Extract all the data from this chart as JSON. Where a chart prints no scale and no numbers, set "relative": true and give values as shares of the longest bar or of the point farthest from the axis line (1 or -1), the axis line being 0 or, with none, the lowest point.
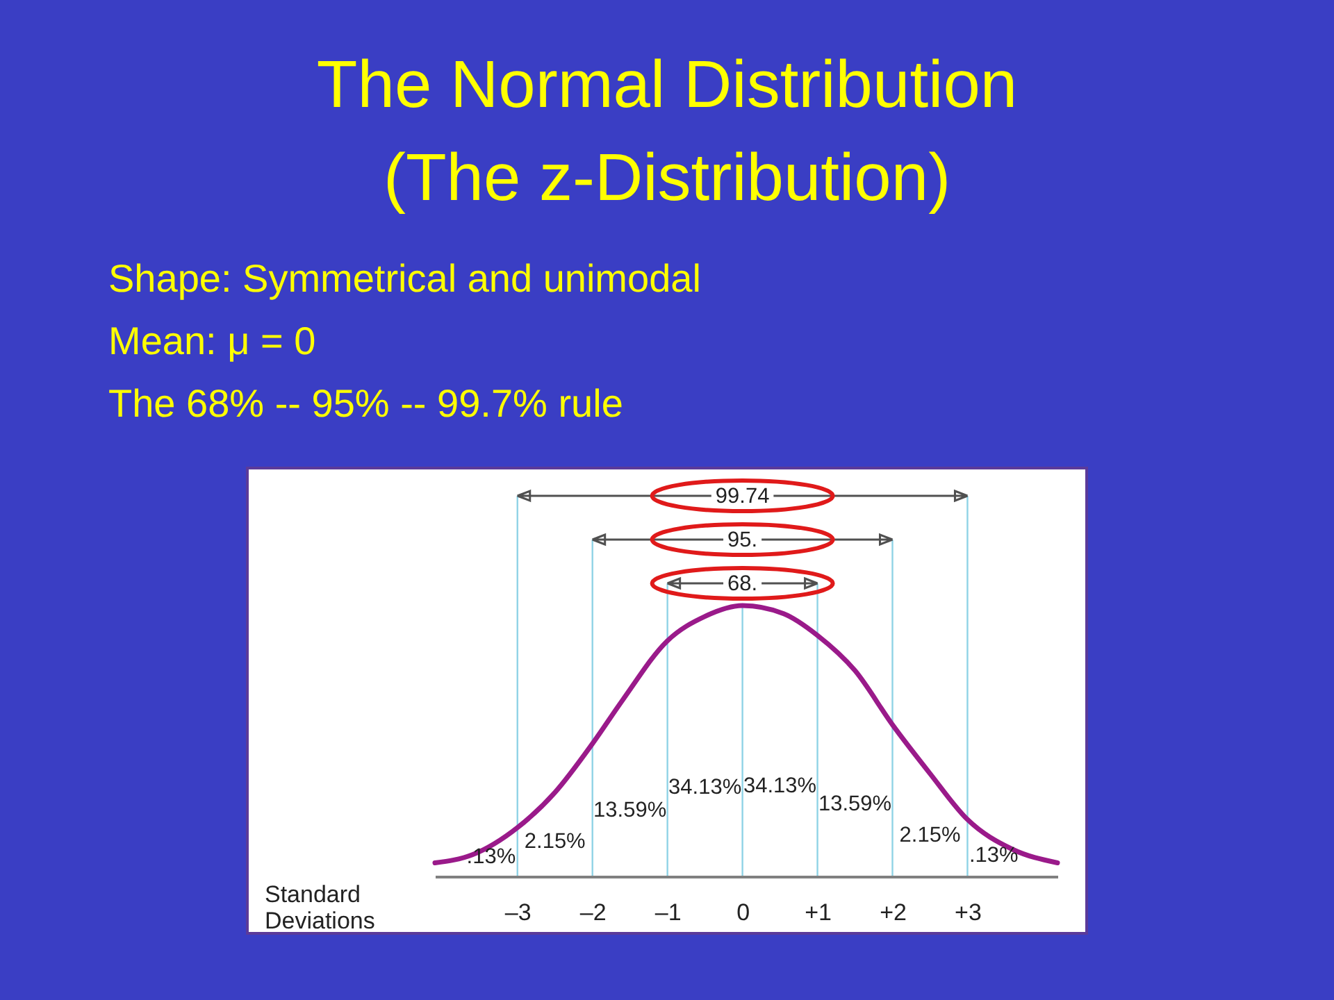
{
  "chart_data": {
    "type": "line",
    "title": "The Normal Distribution\n(The z-Distribution)",
    "subtitle": "Shape: Symmetrical and unimodal\nMean: μ = 0\nThe 68% -- 95% -- 99.7% rule",
    "xlabel": "Standard Deviations",
    "relative": true,
    "xlim": [
      -4.1,
      4.2
    ],
    "xticks": [
      {
        "value": -3,
        "label": "–3"
      },
      {
        "value": -2,
        "label": "–2"
      },
      {
        "value": -1,
        "label": "–1"
      },
      0,
      {
        "value": 1,
        "label": "+1"
      },
      {
        "value": 2,
        "label": "+2"
      },
      {
        "value": 3,
        "label": "+3"
      }
    ],
    "series": [
      {
        "color": "#9a1a8a",
        "x": [
          -4.1,
          -3.6,
          -3.0,
          -2.5,
          -2.0,
          -1.6,
          -1.0,
          -0.5,
          0,
          0.55,
          1.0,
          1.5,
          2.0,
          2.5,
          3.0,
          3.6,
          4.2
        ],
        "values": [
          0.05,
          0.08,
          0.18,
          0.31,
          0.49,
          0.65,
          0.87,
          0.96,
          1,
          0.97,
          0.89,
          0.76,
          0.56,
          0.38,
          0.21,
          0.1,
          0.05
        ]
      }
    ],
    "ref_lines": [
      {
        "axis": "x",
        "value": -3,
        "color": "#8fd3e6"
      },
      {
        "axis": "x",
        "value": -2,
        "color": "#8fd3e6"
      },
      {
        "axis": "x",
        "value": -1,
        "color": "#8fd3e6"
      },
      {
        "axis": "x",
        "value": 0,
        "color": "#8fd3e6"
      },
      {
        "axis": "x",
        "value": 1,
        "color": "#8fd3e6"
      },
      {
        "axis": "x",
        "value": 2,
        "color": "#8fd3e6"
      },
      {
        "axis": "x",
        "value": 3,
        "color": "#8fd3e6"
      }
    ],
    "annotations": [
      "99.74",
      "95.",
      "68.",
      ".13%",
      "2.15%",
      "13.59%",
      "34.13%",
      "34.13%",
      "13.59%",
      "2.15%",
      ".13%"
    ]
  }
}
